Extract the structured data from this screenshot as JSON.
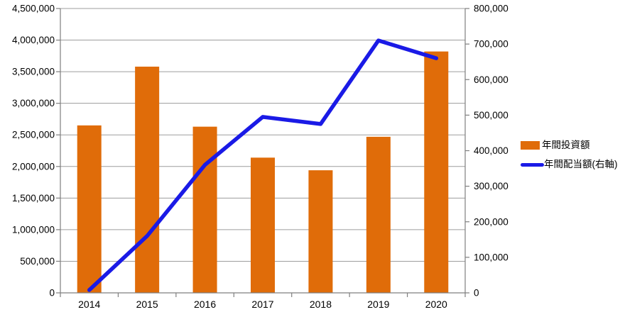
{
  "chart_data": {
    "type": "bar",
    "subtype": "combo-bar-line-dual-axis",
    "title": "",
    "categories": [
      "2014",
      "2015",
      "2016",
      "2017",
      "2018",
      "2019",
      "2020"
    ],
    "series": [
      {
        "name": "年間投資額",
        "type": "bar",
        "axis": "left",
        "color": "#e06c09",
        "values": [
          2650000,
          3580000,
          2630000,
          2140000,
          1940000,
          2470000,
          3820000
        ]
      },
      {
        "name": "年間配当額(右軸)",
        "type": "line",
        "axis": "right",
        "color": "#1a1ae6",
        "values": [
          8000,
          160000,
          360000,
          495000,
          475000,
          710000,
          660000
        ]
      }
    ],
    "left_axis": {
      "min": 0,
      "max": 4500000,
      "step": 500000,
      "tick_labels": [
        "4,500,000",
        "4,000,000",
        "3,500,000",
        "3,000,000",
        "2,500,000",
        "2,000,000",
        "1,500,000",
        "1,000,000",
        "500,000",
        "0"
      ]
    },
    "right_axis": {
      "min": 0,
      "max": 800000,
      "step": 100000,
      "tick_labels": [
        "800,000",
        "700,000",
        "600,000",
        "500,000",
        "400,000",
        "300,000",
        "200,000",
        "100,000",
        "0"
      ]
    },
    "grid": true,
    "legend_position": "right"
  },
  "colors": {
    "bar": "#e06c09",
    "line": "#1a1ae6",
    "gridline": "#9d9d9d",
    "axis": "#7f7f7f",
    "text": "#000000",
    "background": "#ffffff"
  }
}
